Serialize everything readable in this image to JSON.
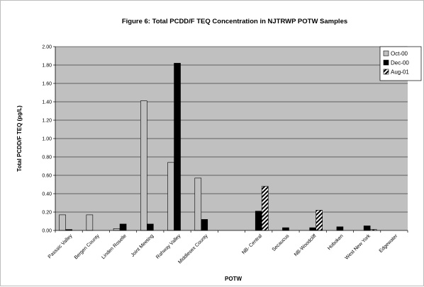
{
  "chart_data": {
    "type": "bar",
    "title": "Figure 6: Total PCDD/F TEQ Concentration in NJTRWP POTW Samples",
    "xlabel": "POTW",
    "ylabel": "Total PCDD/F TEQ (pg/L)",
    "ylim": [
      0,
      2.0
    ],
    "yticks": [
      "0.00",
      "0.20",
      "0.40",
      "0.60",
      "0.80",
      "1.00",
      "1.20",
      "1.40",
      "1.60",
      "1.80",
      "2.00"
    ],
    "grid": true,
    "legend_position": "top-right",
    "plot_background": "#c0c0c0",
    "categories": [
      "Passaic Valley",
      "Bergen County",
      "Linden Roselle",
      "Joint Meeting",
      "Rahway Valley",
      "Middlesex County",
      "",
      "NB- Central",
      "Secaucus",
      "NB-Woodcliff",
      "Hoboken",
      "West New York",
      "Edgewater"
    ],
    "series": [
      {
        "name": "Oct-00",
        "color": "#c0c0c0",
        "pattern": "solid",
        "values": [
          0.17,
          0.17,
          0.02,
          1.41,
          0.74,
          0.57,
          null,
          null,
          null,
          null,
          null,
          null,
          null
        ]
      },
      {
        "name": "Dec-00",
        "color": "#000000",
        "pattern": "solid",
        "values": [
          0.01,
          null,
          0.07,
          0.07,
          1.82,
          0.12,
          null,
          0.21,
          0.03,
          0.03,
          0.04,
          0.05,
          0.0
        ]
      },
      {
        "name": "Aug-01",
        "color": "#000000",
        "pattern": "diagonal-hatch",
        "values": [
          null,
          null,
          null,
          null,
          null,
          null,
          null,
          0.48,
          null,
          0.22,
          null,
          0.01,
          null
        ]
      }
    ]
  }
}
